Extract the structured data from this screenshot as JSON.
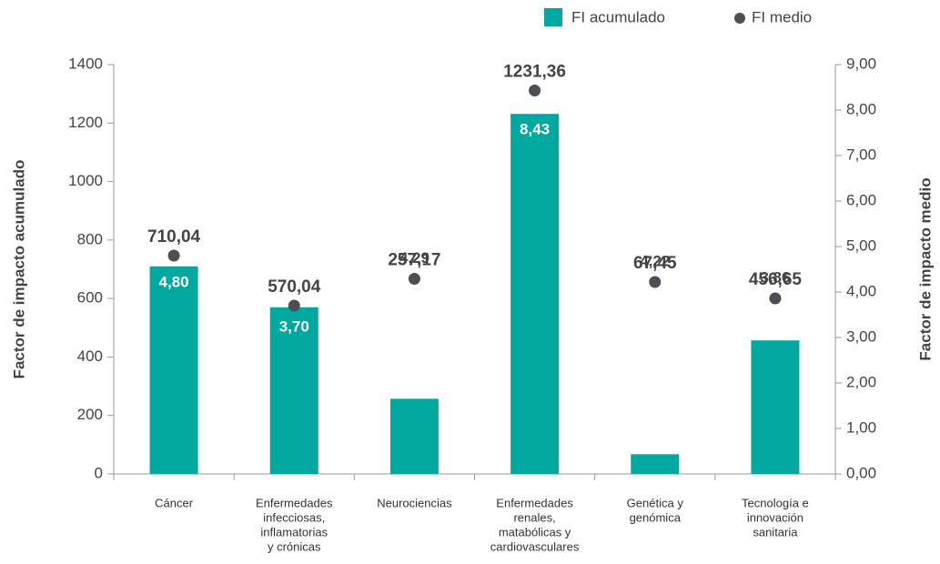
{
  "chart_data": {
    "type": "bar",
    "categories": [
      [
        "Cáncer"
      ],
      [
        "Enfermedades",
        "infecciosas,",
        "inflamatorias",
        "y crónicas"
      ],
      [
        "Neurociencias"
      ],
      [
        "Enfermedades",
        "renales,",
        "matabólicas y",
        "cardiovasculares"
      ],
      [
        "Genética y",
        "genómica"
      ],
      [
        "Tecnología e",
        "innovación",
        "sanitaria"
      ]
    ],
    "series": [
      {
        "name": "FI acumulado",
        "color": "#00a8a0",
        "values": [
          710.04,
          570.04,
          257.17,
          1231.36,
          67.45,
          456.65
        ],
        "value_labels": [
          "710,04",
          "570,04",
          "257,17",
          "1231,36",
          "67,45",
          "456,65"
        ]
      },
      {
        "name": "FI medio",
        "color": "#4b4f54",
        "axis": "y2",
        "values": [
          4.8,
          3.7,
          4.29,
          8.43,
          4.22,
          3.86
        ],
        "value_labels": [
          "4,80",
          "3,70",
          "4,29",
          "8,43",
          "4,22",
          "3,86"
        ]
      }
    ],
    "ylabel": "Factor de impacto acumulado",
    "y2label": "Factor de impacto medio",
    "ylim": [
      0,
      1400
    ],
    "yticks": [
      0,
      200,
      400,
      600,
      800,
      1000,
      1200,
      1400
    ],
    "y2lim": [
      0,
      9
    ],
    "y2ticks": [
      {
        "value": 0,
        "label": "0,00"
      },
      {
        "value": 1,
        "label": "1,00"
      },
      {
        "value": 2,
        "label": "2,00"
      },
      {
        "value": 3,
        "label": "3,00"
      },
      {
        "value": 4,
        "label": "4,00"
      },
      {
        "value": 5,
        "label": "5,00"
      },
      {
        "value": 6,
        "label": "6,00"
      },
      {
        "value": 7,
        "label": "7,00"
      },
      {
        "value": 8,
        "label": "8,00"
      },
      {
        "value": 9,
        "label": "9,00"
      }
    ],
    "legend": "top-right"
  }
}
